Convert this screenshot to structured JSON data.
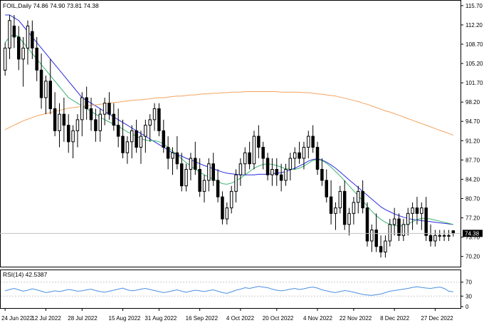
{
  "chart_data": [
    {
      "type": "candlestick",
      "title": "FOIL,Daily  74.86 74.90 73.81 74.38",
      "last_price_label": "74.38",
      "ylim": [
        68.6,
        116.2
      ],
      "y_ticks": [
        "115.70",
        "112.20",
        "108.70",
        "105.20",
        "101.70",
        "98.20",
        "94.70",
        "91.20",
        "87.70",
        "84.20",
        "80.70",
        "77.20",
        "73.70",
        "70.20"
      ],
      "x_ticks": [
        "24 Jun 2022",
        "12 Jul 2022",
        "28 Jul 2022",
        "15 Aug 2022",
        "31 Aug 2022",
        "16 Sep 2022",
        "4 Oct 2022",
        "20 Oct 2022",
        "4 Nov 2022",
        "22 Nov 2022",
        "8 Dec 2022",
        "27 Dec 2022"
      ],
      "grid": false,
      "ohlc": [
        [
          104,
          109,
          103,
          108
        ],
        [
          108,
          114,
          106,
          113
        ],
        [
          112,
          114,
          108,
          110
        ],
        [
          110,
          112,
          104,
          106
        ],
        [
          106,
          110,
          101,
          108
        ],
        [
          108,
          113,
          105,
          112
        ],
        [
          111,
          113,
          106,
          108
        ],
        [
          108,
          110,
          102,
          104
        ],
        [
          104,
          107,
          97,
          99
        ],
        [
          99,
          103,
          96,
          102
        ],
        [
          102,
          106,
          96,
          97
        ],
        [
          97,
          100,
          92,
          93
        ],
        [
          93,
          98,
          90,
          96
        ],
        [
          96,
          99,
          91,
          94
        ],
        [
          94,
          96,
          89,
          91
        ],
        [
          91,
          94,
          88,
          93
        ],
        [
          93,
          96,
          90,
          95
        ],
        [
          95,
          100,
          92,
          99
        ],
        [
          99,
          101,
          95,
          97
        ],
        [
          97,
          99,
          93,
          95
        ],
        [
          95,
          97,
          91,
          93
        ],
        [
          93,
          97,
          91,
          96
        ],
        [
          96,
          99,
          94,
          98
        ],
        [
          98,
          100,
          95,
          96
        ],
        [
          96,
          98,
          93,
          94
        ],
        [
          94,
          97,
          90,
          92
        ],
        [
          92,
          95,
          88,
          89
        ],
        [
          89,
          92,
          87,
          91
        ],
        [
          91,
          94,
          88,
          93
        ],
        [
          93,
          95,
          89,
          90
        ],
        [
          90,
          93,
          87,
          92
        ],
        [
          92,
          95,
          89,
          94
        ],
        [
          94,
          96,
          91,
          95
        ],
        [
          95,
          98,
          93,
          97
        ],
        [
          97,
          98,
          92,
          93
        ],
        [
          93,
          95,
          89,
          90
        ],
        [
          90,
          92,
          86,
          88
        ],
        [
          88,
          90,
          85,
          89
        ],
        [
          89,
          92,
          86,
          87
        ],
        [
          87,
          89,
          82,
          83
        ],
        [
          83,
          87,
          82,
          86
        ],
        [
          86,
          89,
          84,
          88
        ],
        [
          88,
          91,
          85,
          86
        ],
        [
          86,
          88,
          81,
          82
        ],
        [
          82,
          85,
          80,
          84
        ],
        [
          84,
          88,
          82,
          87
        ],
        [
          87,
          89,
          83,
          84
        ],
        [
          84,
          86,
          80,
          81
        ],
        [
          81,
          82,
          76,
          77
        ],
        [
          77,
          80,
          76,
          79
        ],
        [
          79,
          83,
          78,
          82
        ],
        [
          82,
          86,
          80,
          85
        ],
        [
          85,
          88,
          83,
          87
        ],
        [
          87,
          90,
          85,
          89
        ],
        [
          89,
          91,
          86,
          87
        ],
        [
          87,
          93,
          86,
          92
        ],
        [
          92,
          94,
          88,
          90
        ],
        [
          90,
          91,
          86,
          88
        ],
        [
          88,
          89,
          84,
          85
        ],
        [
          85,
          88,
          83,
          86
        ],
        [
          86,
          88,
          83,
          85
        ],
        [
          85,
          87,
          82,
          84
        ],
        [
          84,
          87,
          83,
          86
        ],
        [
          86,
          89,
          84,
          88
        ],
        [
          88,
          90,
          86,
          89
        ],
        [
          89,
          91,
          87,
          88
        ],
        [
          88,
          91,
          86,
          90
        ],
        [
          90,
          93,
          88,
          92
        ],
        [
          92,
          94,
          89,
          90
        ],
        [
          90,
          91,
          85,
          86
        ],
        [
          86,
          88,
          83,
          84
        ],
        [
          84,
          86,
          80,
          81
        ],
        [
          81,
          84,
          76,
          78
        ],
        [
          78,
          80,
          75,
          79
        ],
        [
          79,
          83,
          78,
          82
        ],
        [
          82,
          84,
          75,
          76
        ],
        [
          76,
          79,
          74,
          78
        ],
        [
          78,
          81,
          76,
          80
        ],
        [
          80,
          83,
          78,
          82
        ],
        [
          82,
          84,
          78,
          79
        ],
        [
          79,
          80,
          72,
          73
        ],
        [
          73,
          76,
          71,
          75
        ],
        [
          75,
          78,
          71,
          72
        ],
        [
          72,
          74,
          70,
          71
        ],
        [
          71,
          74,
          70,
          73
        ],
        [
          73,
          77,
          72,
          76
        ],
        [
          76,
          79,
          74,
          77
        ],
        [
          77,
          78,
          73,
          74
        ],
        [
          74,
          77,
          73,
          76
        ],
        [
          76,
          79,
          74,
          78
        ],
        [
          78,
          80,
          75,
          79
        ],
        [
          79,
          81,
          76,
          78
        ],
        [
          78,
          80,
          75,
          79
        ],
        [
          79,
          81,
          73,
          74
        ],
        [
          74,
          76,
          72,
          73
        ],
        [
          73,
          75,
          72,
          74
        ],
        [
          74,
          75,
          73,
          74
        ],
        [
          74,
          75,
          73,
          74
        ],
        [
          74,
          75,
          73,
          74
        ],
        [
          74.86,
          74.9,
          73.81,
          74.38
        ]
      ],
      "series": [
        {
          "name": "",
          "color": "#2b2bdf",
          "values": [
            114,
            114,
            113.5,
            113,
            112,
            111,
            110,
            109,
            108,
            107,
            106,
            105,
            104,
            103,
            102,
            101,
            100,
            99,
            98.5,
            98,
            97.5,
            97,
            96.5,
            96,
            95.5,
            95,
            94.5,
            94,
            93.5,
            93,
            92.5,
            92,
            91.5,
            91,
            90.5,
            90,
            89.5,
            89,
            88.7,
            88.4,
            88,
            87.7,
            87.4,
            87,
            86.7,
            86.4,
            86.1,
            85.8,
            85.5,
            85.3,
            85.2,
            85.1,
            85,
            85,
            85,
            85,
            85.1,
            85.1,
            85.1,
            85.2,
            85.3,
            85.4,
            85.6,
            85.9,
            86.2,
            86.6,
            87,
            87.5,
            87.8,
            87.9,
            87.7,
            87.3,
            86.8,
            86.2,
            85.5,
            84.8,
            84.1,
            83.4,
            82.7,
            82,
            81.3,
            80.6,
            79.9,
            79.2,
            78.7,
            78.3,
            77.9,
            77.6,
            77.3,
            77.1,
            76.9,
            76.8,
            76.7,
            76.6,
            76.5,
            76.4,
            76.3,
            76.2,
            76.1,
            76
          ]
        },
        {
          "name": "",
          "color": "#3cb371",
          "values": [
            109,
            110,
            110.5,
            110,
            109,
            108,
            107,
            106,
            105,
            104,
            103,
            102,
            101,
            100,
            99,
            98.5,
            98,
            97.5,
            97,
            96.5,
            96,
            95.5,
            95,
            94.6,
            94.2,
            93.8,
            93.3,
            92.8,
            92.4,
            92,
            91.6,
            91.3,
            91.2,
            91.2,
            91,
            90.6,
            90,
            89.3,
            88.6,
            87.9,
            87.2,
            86.6,
            86,
            85.5,
            85,
            84.6,
            84.2,
            83.8,
            83.4,
            83.3,
            83.5,
            83.9,
            84.4,
            85,
            85.6,
            86.2,
            86.6,
            86.9,
            87,
            86.9,
            86.7,
            86.4,
            86.1,
            86,
            86,
            86.2,
            86.6,
            87.1,
            87.6,
            87.8,
            87.6,
            87.1,
            86.4,
            85.6,
            84.8,
            83.9,
            83,
            82.1,
            81.2,
            80.3,
            79.3,
            78.4,
            77.6,
            76.9,
            76.4,
            76,
            75.8,
            75.7,
            75.8,
            76.1,
            76.5,
            76.9,
            77.1,
            77.1,
            77,
            76.8,
            76.6,
            76.4,
            76.2,
            76
          ]
        },
        {
          "name": "",
          "color": "#f4a460",
          "values": [
            93.2,
            93.6,
            94,
            94.4,
            94.8,
            95.1,
            95.4,
            95.7,
            95.9,
            96.1,
            96.3,
            96.5,
            96.7,
            96.9,
            97.1,
            97.2,
            97.3,
            97.4,
            97.5,
            97.6,
            97.7,
            97.8,
            97.9,
            98,
            98.1,
            98.2,
            98.3,
            98.4,
            98.5,
            98.6,
            98.6,
            98.7,
            98.8,
            98.9,
            99,
            99,
            99.1,
            99.2,
            99.3,
            99.3,
            99.4,
            99.5,
            99.5,
            99.6,
            99.7,
            99.7,
            99.8,
            99.8,
            99.9,
            99.9,
            100,
            100,
            100,
            100.1,
            100.1,
            100.1,
            100.1,
            100.1,
            100.1,
            100.1,
            100.1,
            100,
            100,
            100,
            100,
            100,
            99.9,
            99.9,
            99.8,
            99.7,
            99.6,
            99.5,
            99.4,
            99.3,
            99.1,
            98.9,
            98.7,
            98.5,
            98.3,
            98,
            97.8,
            97.5,
            97.2,
            96.9,
            96.6,
            96.4,
            96.1,
            95.8,
            95.5,
            95.2,
            94.9,
            94.6,
            94.3,
            94,
            93.7,
            93.4,
            93.1,
            92.8,
            92.5,
            92.2
          ]
        }
      ]
    },
    {
      "type": "line",
      "title": "RSI(14) 42.5387",
      "ylim": [
        0,
        100
      ],
      "y_ticks": [
        "70",
        "30",
        "0"
      ],
      "series": [
        {
          "name": "",
          "color": "#4a90e2",
          "values": [
            45,
            49,
            52,
            48,
            44,
            47,
            51,
            48,
            44,
            40,
            42,
            45,
            43,
            46,
            49,
            47,
            44,
            45,
            48,
            50,
            46,
            43,
            41,
            44,
            47,
            50,
            53,
            48,
            45,
            47,
            50,
            52,
            49,
            46,
            43,
            40,
            42,
            45,
            48,
            44,
            41,
            44,
            47,
            45,
            43,
            46,
            48,
            44,
            40,
            38,
            42,
            47,
            50,
            54,
            52,
            55,
            58,
            56,
            54,
            50,
            47,
            45,
            47,
            50,
            52,
            49,
            51,
            54,
            56,
            53,
            48,
            45,
            42,
            40,
            43,
            46,
            44,
            41,
            38,
            35,
            33,
            32,
            34,
            36,
            40,
            44,
            46,
            48,
            50,
            52,
            55,
            57,
            55,
            53,
            52,
            54,
            56,
            52,
            44,
            42.5387
          ]
        }
      ]
    }
  ]
}
